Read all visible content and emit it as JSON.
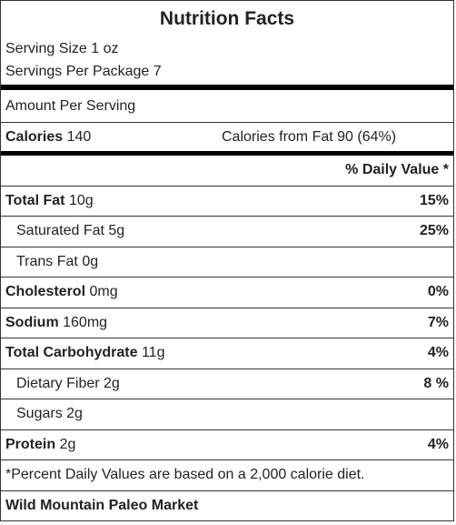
{
  "title": "Nutrition Facts",
  "serving_size": "Serving Size 1 oz",
  "servings_per_package": "Servings Per Package 7",
  "amount_per_serving": "Amount Per Serving",
  "calories": {
    "label": "Calories",
    "value": "140",
    "from_fat": "Calories from Fat 90 (64%)"
  },
  "daily_value_header": "% Daily Value *",
  "rows": [
    {
      "name": "Total Fat",
      "amount": "10g",
      "dv": "15%"
    },
    {
      "name": "Saturated Fat",
      "amount": "5g",
      "dv": "25%"
    },
    {
      "name": "Trans Fat",
      "amount": "0g"
    },
    {
      "name": "Cholesterol",
      "amount": "0mg",
      "dv": "0%"
    },
    {
      "name": "Sodium",
      "amount": "160mg",
      "dv": "7%"
    },
    {
      "name": "Total Carbohydrate",
      "amount": "11g",
      "dv": "4%"
    },
    {
      "name": "Dietary Fiber",
      "amount": "2g",
      "dv": "8 %"
    },
    {
      "name": "Sugars",
      "amount": "2g"
    },
    {
      "name": "Protein",
      "amount": "2g",
      "dv": "4%"
    }
  ],
  "footnote": "*Percent Daily Values are based on a 2,000 calorie diet.",
  "brand": "Wild Mountain Paleo Market"
}
